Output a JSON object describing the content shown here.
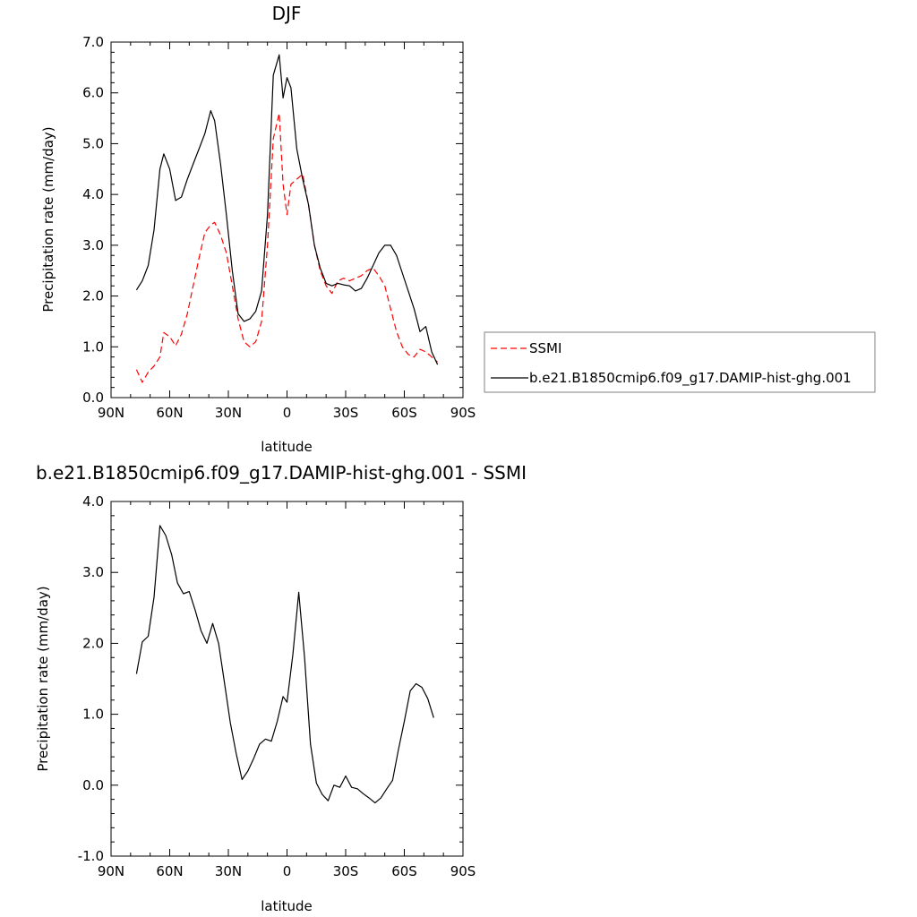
{
  "chart_data": [
    {
      "type": "line",
      "title": "DJF",
      "xlabel": "latitude",
      "ylabel": "Precipitation rate (mm/day)",
      "xlim": [
        90,
        -90
      ],
      "ylim": [
        0,
        7
      ],
      "x_ticks": [
        90,
        60,
        30,
        0,
        -30,
        -60,
        -90
      ],
      "x_tick_labels": [
        "90N",
        "60N",
        "30N",
        "0",
        "30S",
        "60S",
        "90S"
      ],
      "y_ticks": [
        0,
        1,
        2,
        3,
        4,
        5,
        6,
        7
      ],
      "y_tick_labels": [
        "0.0",
        "1.0",
        "2.0",
        "3.0",
        "4.0",
        "5.0",
        "6.0",
        "7.0"
      ],
      "grid": false,
      "legend": {
        "placement": "right",
        "entries": [
          "SSMI",
          "b.e21.B1850cmip6.f09_g17.DAMIP-hist-ghg.001"
        ]
      },
      "series": [
        {
          "name": "SSMI",
          "color": "#ff0000",
          "style": "dashed",
          "x": [
            77,
            74,
            71,
            68,
            65,
            63,
            60,
            57,
            54,
            51,
            48,
            45,
            42,
            39,
            37,
            34,
            31,
            28,
            25,
            22,
            19,
            16,
            13,
            10,
            7,
            4,
            2,
            0,
            -2,
            -5,
            -8,
            -11,
            -14,
            -17,
            -20,
            -23,
            -26,
            -29,
            -32,
            -35,
            -38,
            -41,
            -44,
            -47,
            -50,
            -53,
            -56,
            -59,
            -62,
            -65,
            -68,
            -71,
            -74,
            -77
          ],
          "y": [
            0.55,
            0.3,
            0.5,
            0.62,
            0.8,
            1.28,
            1.2,
            1.02,
            1.25,
            1.65,
            2.2,
            2.75,
            3.25,
            3.4,
            3.45,
            3.2,
            2.85,
            2.2,
            1.55,
            1.1,
            1.0,
            1.1,
            1.5,
            3.0,
            5.1,
            5.6,
            4.2,
            3.6,
            4.2,
            4.3,
            4.4,
            3.8,
            3.0,
            2.5,
            2.2,
            2.05,
            2.3,
            2.35,
            2.3,
            2.35,
            2.4,
            2.5,
            2.55,
            2.4,
            2.2,
            1.75,
            1.3,
            1.0,
            0.85,
            0.8,
            0.95,
            0.9,
            0.8,
            0.7
          ]
        },
        {
          "name": "b.e21.B1850cmip6.f09_g17.DAMIP-hist-ghg.001",
          "color": "#000000",
          "style": "solid",
          "x": [
            77,
            74,
            71,
            68,
            65,
            63,
            60,
            57,
            54,
            51,
            48,
            45,
            42,
            39,
            37,
            34,
            31,
            28,
            25,
            22,
            19,
            16,
            13,
            10,
            7,
            4,
            2,
            0,
            -2,
            -5,
            -8,
            -11,
            -14,
            -17,
            -20,
            -23,
            -26,
            -29,
            -32,
            -35,
            -38,
            -41,
            -44,
            -47,
            -50,
            -53,
            -56,
            -59,
            -62,
            -65,
            -68,
            -71,
            -74,
            -77
          ],
          "y": [
            2.12,
            2.3,
            2.6,
            3.3,
            4.5,
            4.8,
            4.5,
            3.88,
            3.95,
            4.3,
            4.6,
            4.9,
            5.2,
            5.65,
            5.45,
            4.6,
            3.6,
            2.5,
            1.65,
            1.5,
            1.55,
            1.7,
            2.1,
            3.6,
            6.35,
            6.75,
            5.9,
            6.3,
            6.1,
            4.9,
            4.3,
            3.8,
            3.0,
            2.55,
            2.25,
            2.2,
            2.25,
            2.22,
            2.2,
            2.1,
            2.15,
            2.35,
            2.6,
            2.85,
            3.0,
            3.0,
            2.8,
            2.45,
            2.1,
            1.75,
            1.3,
            1.4,
            0.9,
            0.65
          ]
        }
      ]
    },
    {
      "type": "line",
      "title": "b.e21.B1850cmip6.f09_g17.DAMIP-hist-ghg.001 - SSMI",
      "xlabel": "latitude",
      "ylabel": "Precipitation rate (mm/day)",
      "xlim": [
        90,
        -90
      ],
      "ylim": [
        -1,
        4
      ],
      "x_ticks": [
        90,
        60,
        30,
        0,
        -30,
        -60,
        -90
      ],
      "x_tick_labels": [
        "90N",
        "60N",
        "30N",
        "0",
        "30S",
        "60S",
        "90S"
      ],
      "y_ticks": [
        -1,
        0,
        1,
        2,
        3,
        4
      ],
      "y_tick_labels": [
        "-1.0",
        "0.0",
        "1.0",
        "2.0",
        "3.0",
        "4.0"
      ],
      "grid": false,
      "series": [
        {
          "color": "#000000",
          "style": "solid",
          "x": [
            77,
            74,
            71,
            68,
            65,
            62,
            59,
            56,
            53,
            50,
            47,
            44,
            41,
            38,
            35,
            32,
            29,
            26,
            23,
            20,
            17,
            14,
            11,
            8,
            5,
            2,
            0,
            -3,
            -6,
            -9,
            -12,
            -15,
            -18,
            -21,
            -24,
            -27,
            -30,
            -33,
            -36,
            -39,
            -42,
            -45,
            -48,
            -51,
            -54,
            -57,
            -60,
            -63,
            -66,
            -69,
            -72,
            -75
          ],
          "y": [
            1.57,
            2.02,
            2.1,
            2.65,
            3.66,
            3.52,
            3.25,
            2.85,
            2.7,
            2.73,
            2.47,
            2.18,
            2.0,
            2.28,
            2.0,
            1.45,
            0.88,
            0.45,
            0.08,
            0.2,
            0.38,
            0.58,
            0.65,
            0.62,
            0.9,
            1.25,
            1.17,
            1.85,
            2.72,
            1.8,
            0.58,
            0.03,
            -0.13,
            -0.22,
            0.0,
            -0.03,
            0.13,
            -0.03,
            -0.05,
            -0.12,
            -0.18,
            -0.25,
            -0.18,
            -0.05,
            0.07,
            0.5,
            0.9,
            1.33,
            1.43,
            1.38,
            1.22,
            0.95
          ]
        }
      ]
    }
  ]
}
